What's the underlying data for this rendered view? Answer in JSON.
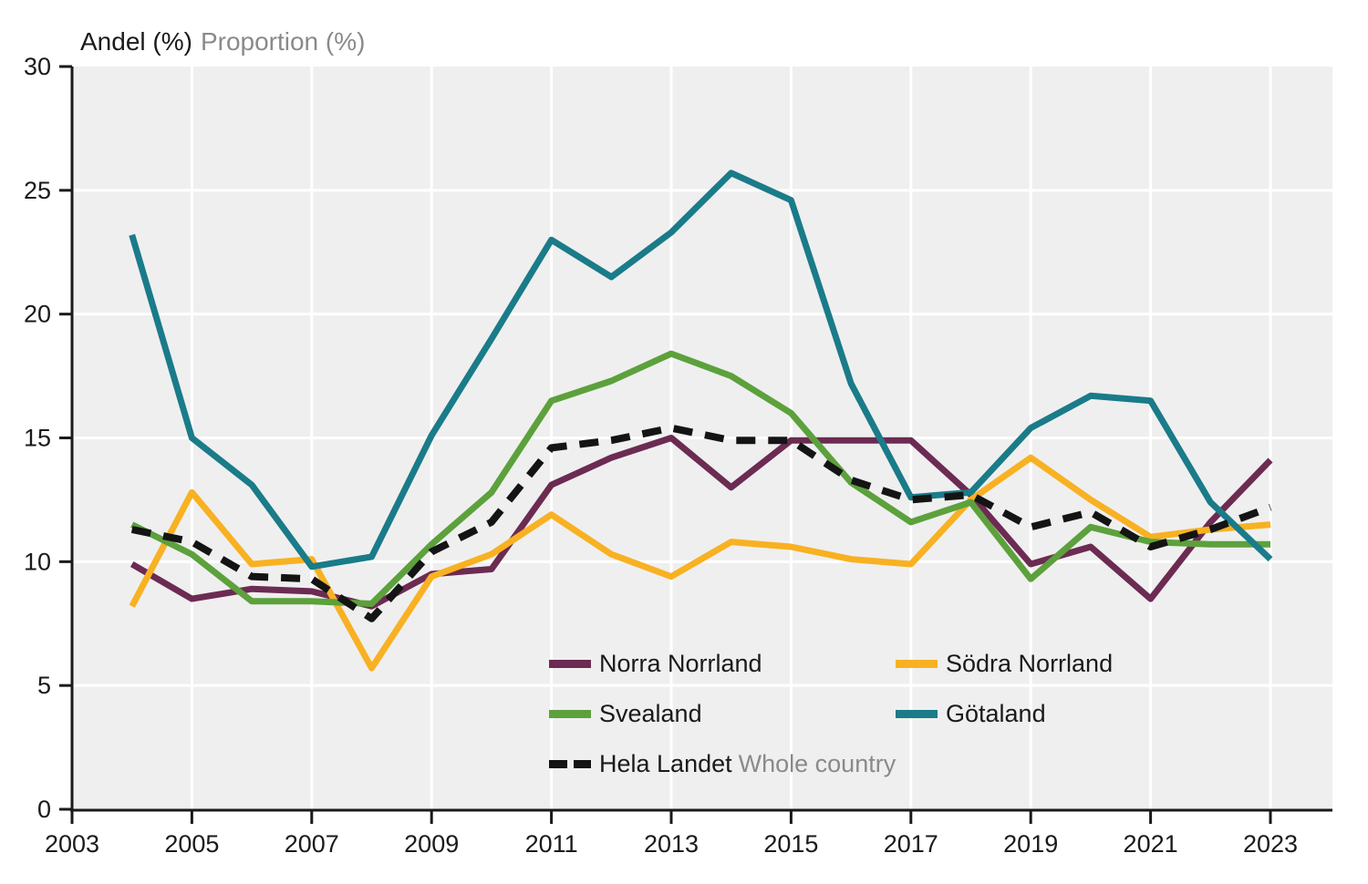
{
  "chart_data": {
    "type": "line",
    "title_sv": "Andel (%)",
    "title_en": "Proportion (%)",
    "ylabel": "",
    "xlabel": "",
    "ylim": [
      0,
      30
    ],
    "xlim": [
      2003,
      2024
    ],
    "grid": true,
    "legend_position": "inside-bottom-center",
    "years": [
      2004,
      2005,
      2006,
      2007,
      2008,
      2009,
      2010,
      2011,
      2012,
      2013,
      2014,
      2015,
      2016,
      2017,
      2018,
      2019,
      2020,
      2021,
      2022,
      2023
    ],
    "x_ticks": [
      "2003",
      "2005",
      "2007",
      "2009",
      "2011",
      "2013",
      "2015",
      "2017",
      "2019",
      "2021",
      "2023"
    ],
    "x_tick_years": [
      2003,
      2005,
      2007,
      2009,
      2011,
      2013,
      2015,
      2017,
      2019,
      2021,
      2023
    ],
    "y_ticks": [
      "0",
      "5",
      "10",
      "15",
      "20",
      "25",
      "30"
    ],
    "y_tick_values": [
      0,
      5,
      10,
      15,
      20,
      25,
      30
    ],
    "colors": {
      "plot_background": "#EFEFEF",
      "gridline": "#FFFFFF",
      "axis": "#1a1a1a",
      "muted_text": "#8a8a8a",
      "text": "#1a1a1a"
    },
    "series": [
      {
        "name": "Norra Norrland",
        "color": "#6C2B52",
        "dashed": false,
        "values": [
          9.9,
          8.5,
          8.9,
          8.8,
          8.2,
          9.5,
          9.7,
          13.1,
          14.2,
          15.0,
          13.0,
          14.9,
          14.9,
          14.9,
          12.7,
          9.9,
          10.6,
          8.5,
          11.6,
          14.1
        ]
      },
      {
        "name": "Södra Norrland",
        "color": "#F8B122",
        "dashed": false,
        "values": [
          8.2,
          12.8,
          9.9,
          10.1,
          5.7,
          9.4,
          10.3,
          11.9,
          10.3,
          9.4,
          10.8,
          10.6,
          10.1,
          9.9,
          12.5,
          14.2,
          12.5,
          11.0,
          11.3,
          11.5
        ]
      },
      {
        "name": "Svealand",
        "color": "#5CA13C",
        "dashed": false,
        "values": [
          11.5,
          10.3,
          8.4,
          8.4,
          8.3,
          10.7,
          12.8,
          16.5,
          17.3,
          18.4,
          17.5,
          16.0,
          13.2,
          11.6,
          12.4,
          9.3,
          11.4,
          10.8,
          10.7,
          10.7
        ]
      },
      {
        "name": "Götaland",
        "color": "#1A7B89",
        "dashed": false,
        "values": [
          23.2,
          15.0,
          13.1,
          9.8,
          10.2,
          15.1,
          19.0,
          23.0,
          21.5,
          23.3,
          25.7,
          24.6,
          17.2,
          12.6,
          12.8,
          15.4,
          16.7,
          16.5,
          12.4,
          10.1
        ]
      },
      {
        "name": "Hela Landet",
        "name_secondary": "Whole country",
        "color": "#141414",
        "dashed": true,
        "values": [
          11.3,
          10.8,
          9.4,
          9.3,
          7.7,
          10.4,
          11.6,
          14.6,
          14.9,
          15.4,
          14.9,
          14.9,
          13.3,
          12.5,
          12.7,
          11.4,
          12.0,
          10.6,
          11.3,
          12.2
        ]
      }
    ]
  }
}
